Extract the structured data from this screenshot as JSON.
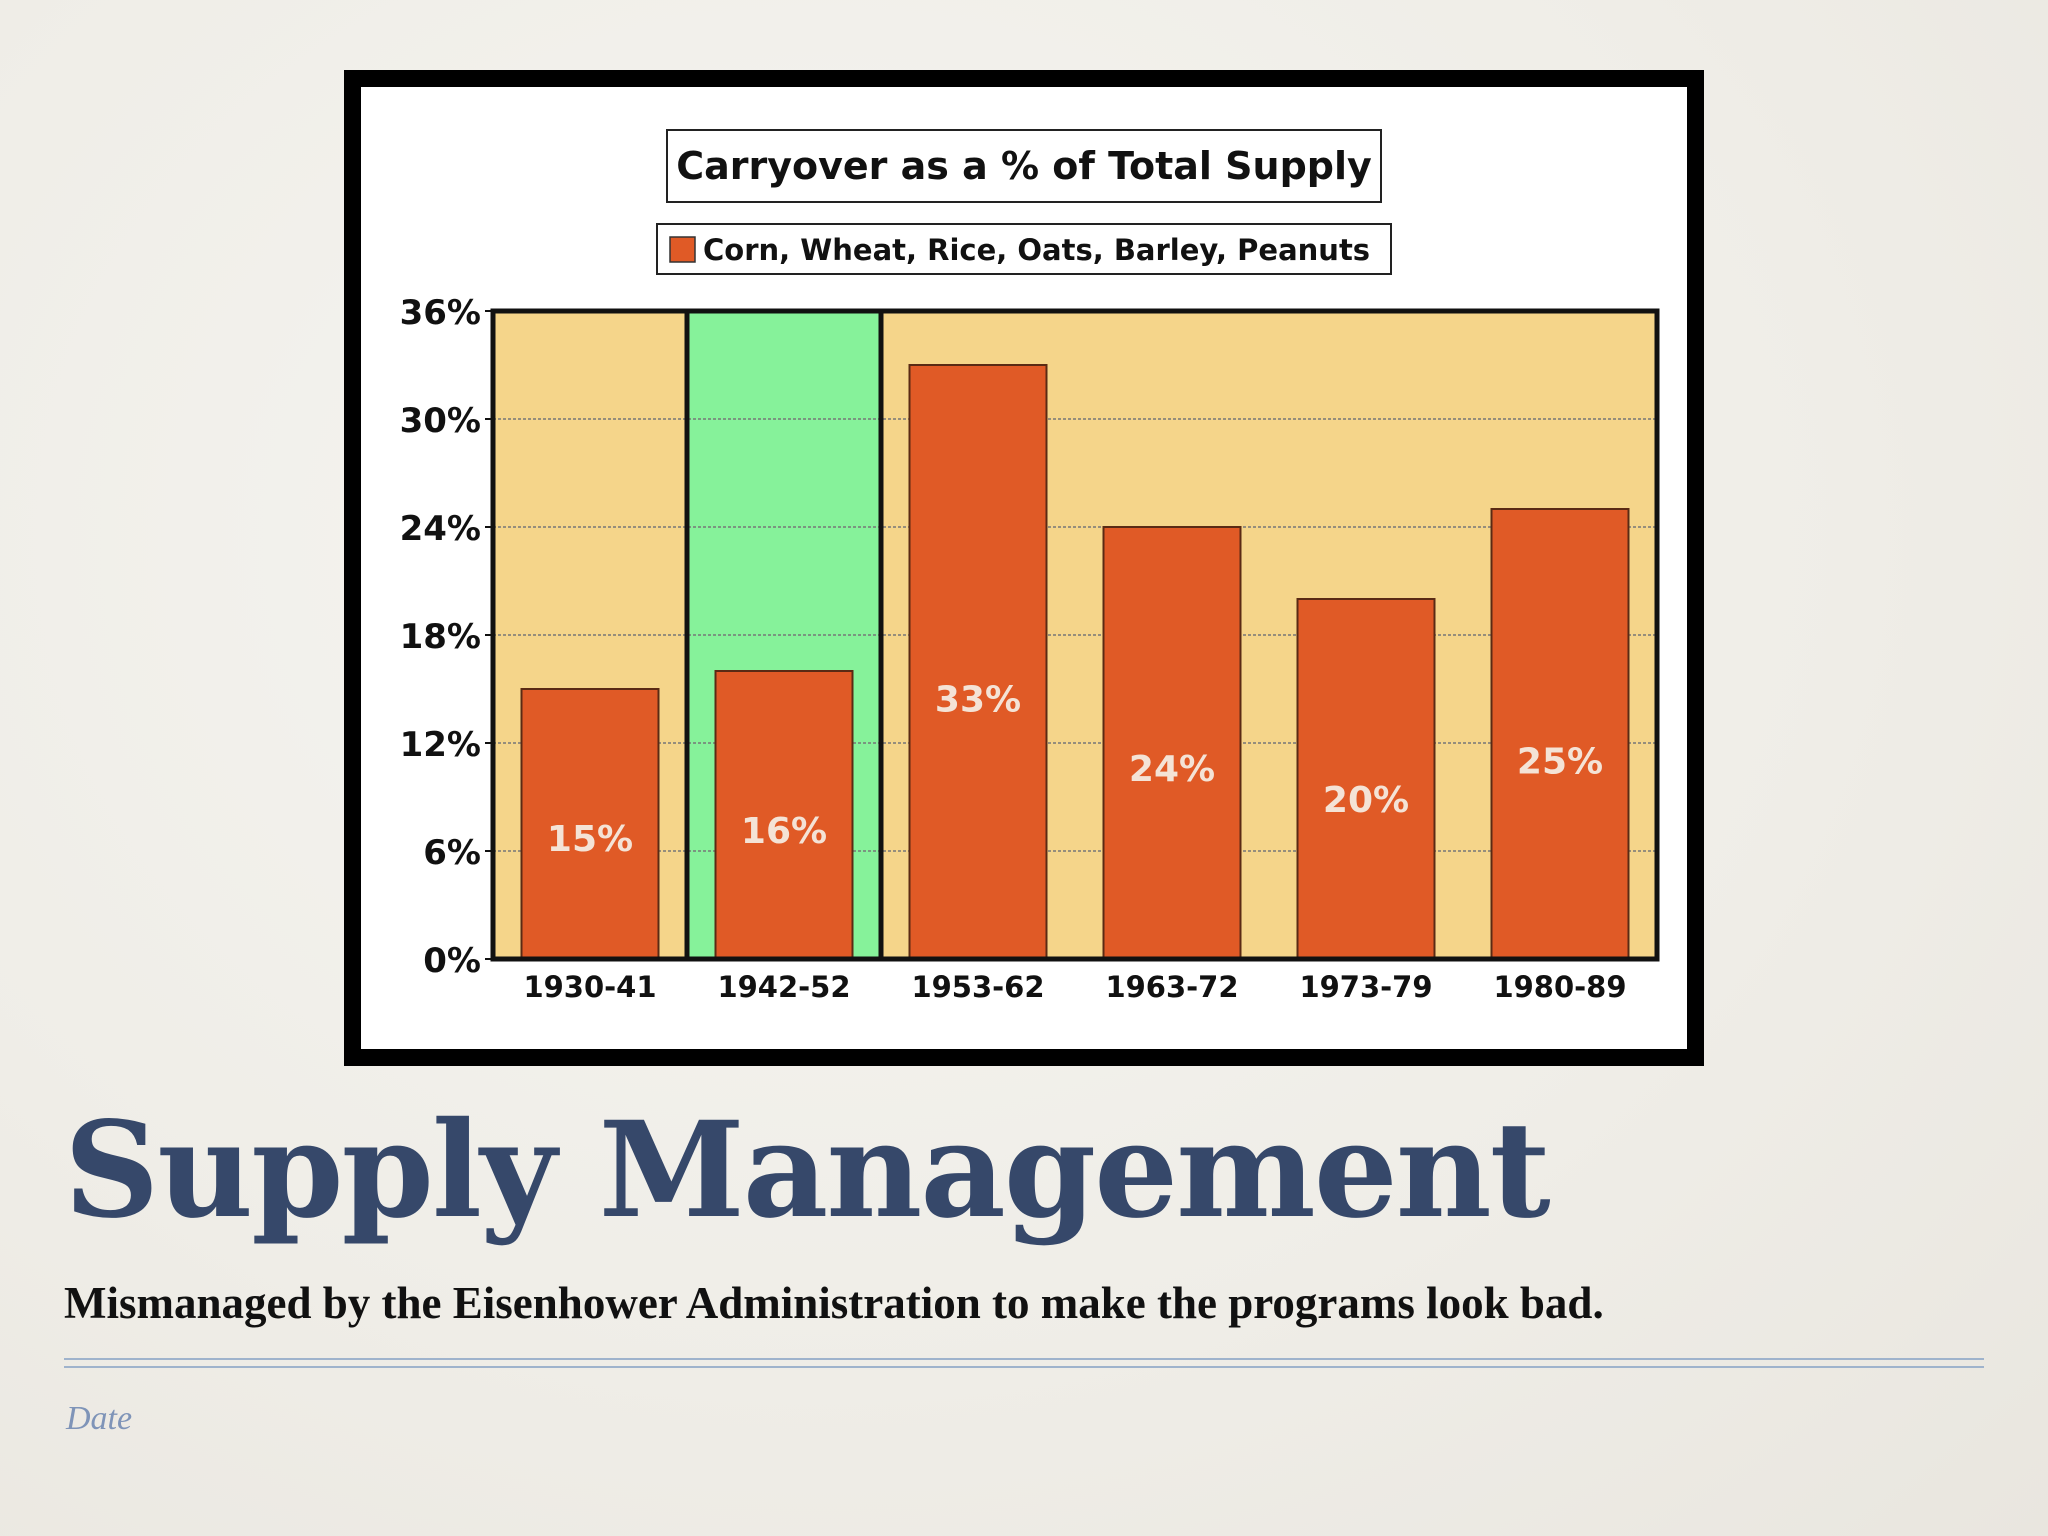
{
  "slide": {
    "title": "Supply Management",
    "subtitle": "Mismanaged by the Eisenhower Administration to make the programs look bad.",
    "date_placeholder": "Date"
  },
  "colors": {
    "bar": "#e05a26",
    "plot_bg": "#f5d58a",
    "highlight_bg": "#86f29a",
    "title_color": "#36486a"
  },
  "chart_data": {
    "type": "bar",
    "title": "Carryover as a % of Total Supply",
    "categories": [
      "1930-41",
      "1942-52",
      "1953-62",
      "1963-72",
      "1973-79",
      "1980-89"
    ],
    "series": [
      {
        "name": "Corn, Wheat, Rice, Oats, Barley, Peanuts",
        "values": [
          15,
          16,
          33,
          24,
          20,
          25
        ],
        "data_labels": [
          "15%",
          "16%",
          "33%",
          "24%",
          "20%",
          "25%"
        ]
      }
    ],
    "y_ticks": [
      "0%",
      "6%",
      "12%",
      "18%",
      "24%",
      "30%",
      "36%"
    ],
    "ylim": [
      0,
      36
    ],
    "grid": true,
    "legend_position": "top-center",
    "highlighted_category": "1942-52"
  }
}
